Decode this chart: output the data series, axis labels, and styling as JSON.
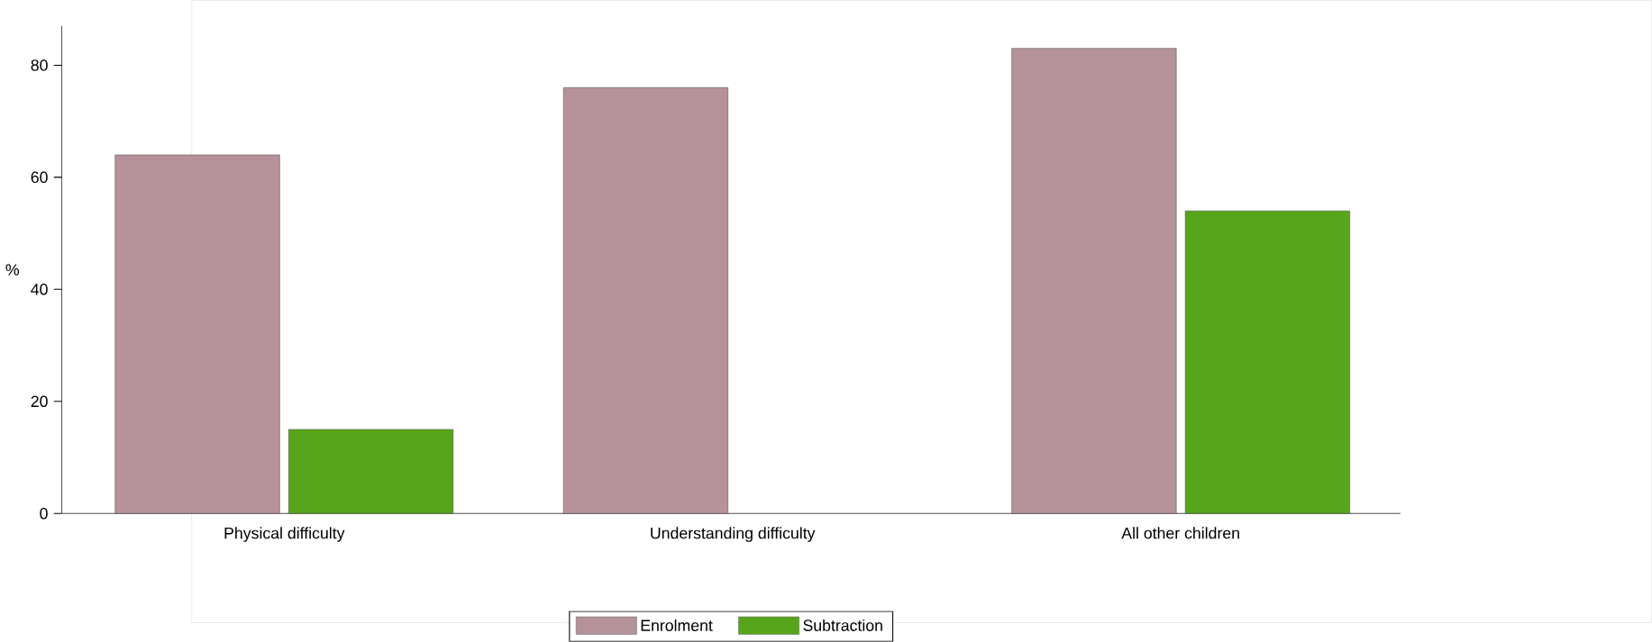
{
  "chart_data": {
    "type": "bar",
    "ylabel": "%",
    "categories": [
      "Physical difficulty",
      "Understanding difficulty",
      "All other children"
    ],
    "series": [
      {
        "name": "Enrolment",
        "color": "#b5929a",
        "values": [
          64,
          76,
          83
        ]
      },
      {
        "name": "Subtraction",
        "color": "#57a51a",
        "values": [
          15,
          null,
          54
        ]
      }
    ],
    "ylim": [
      0,
      87
    ],
    "yticks": [
      0,
      20,
      40,
      60,
      80
    ],
    "grid": false,
    "legend": "bottom"
  }
}
